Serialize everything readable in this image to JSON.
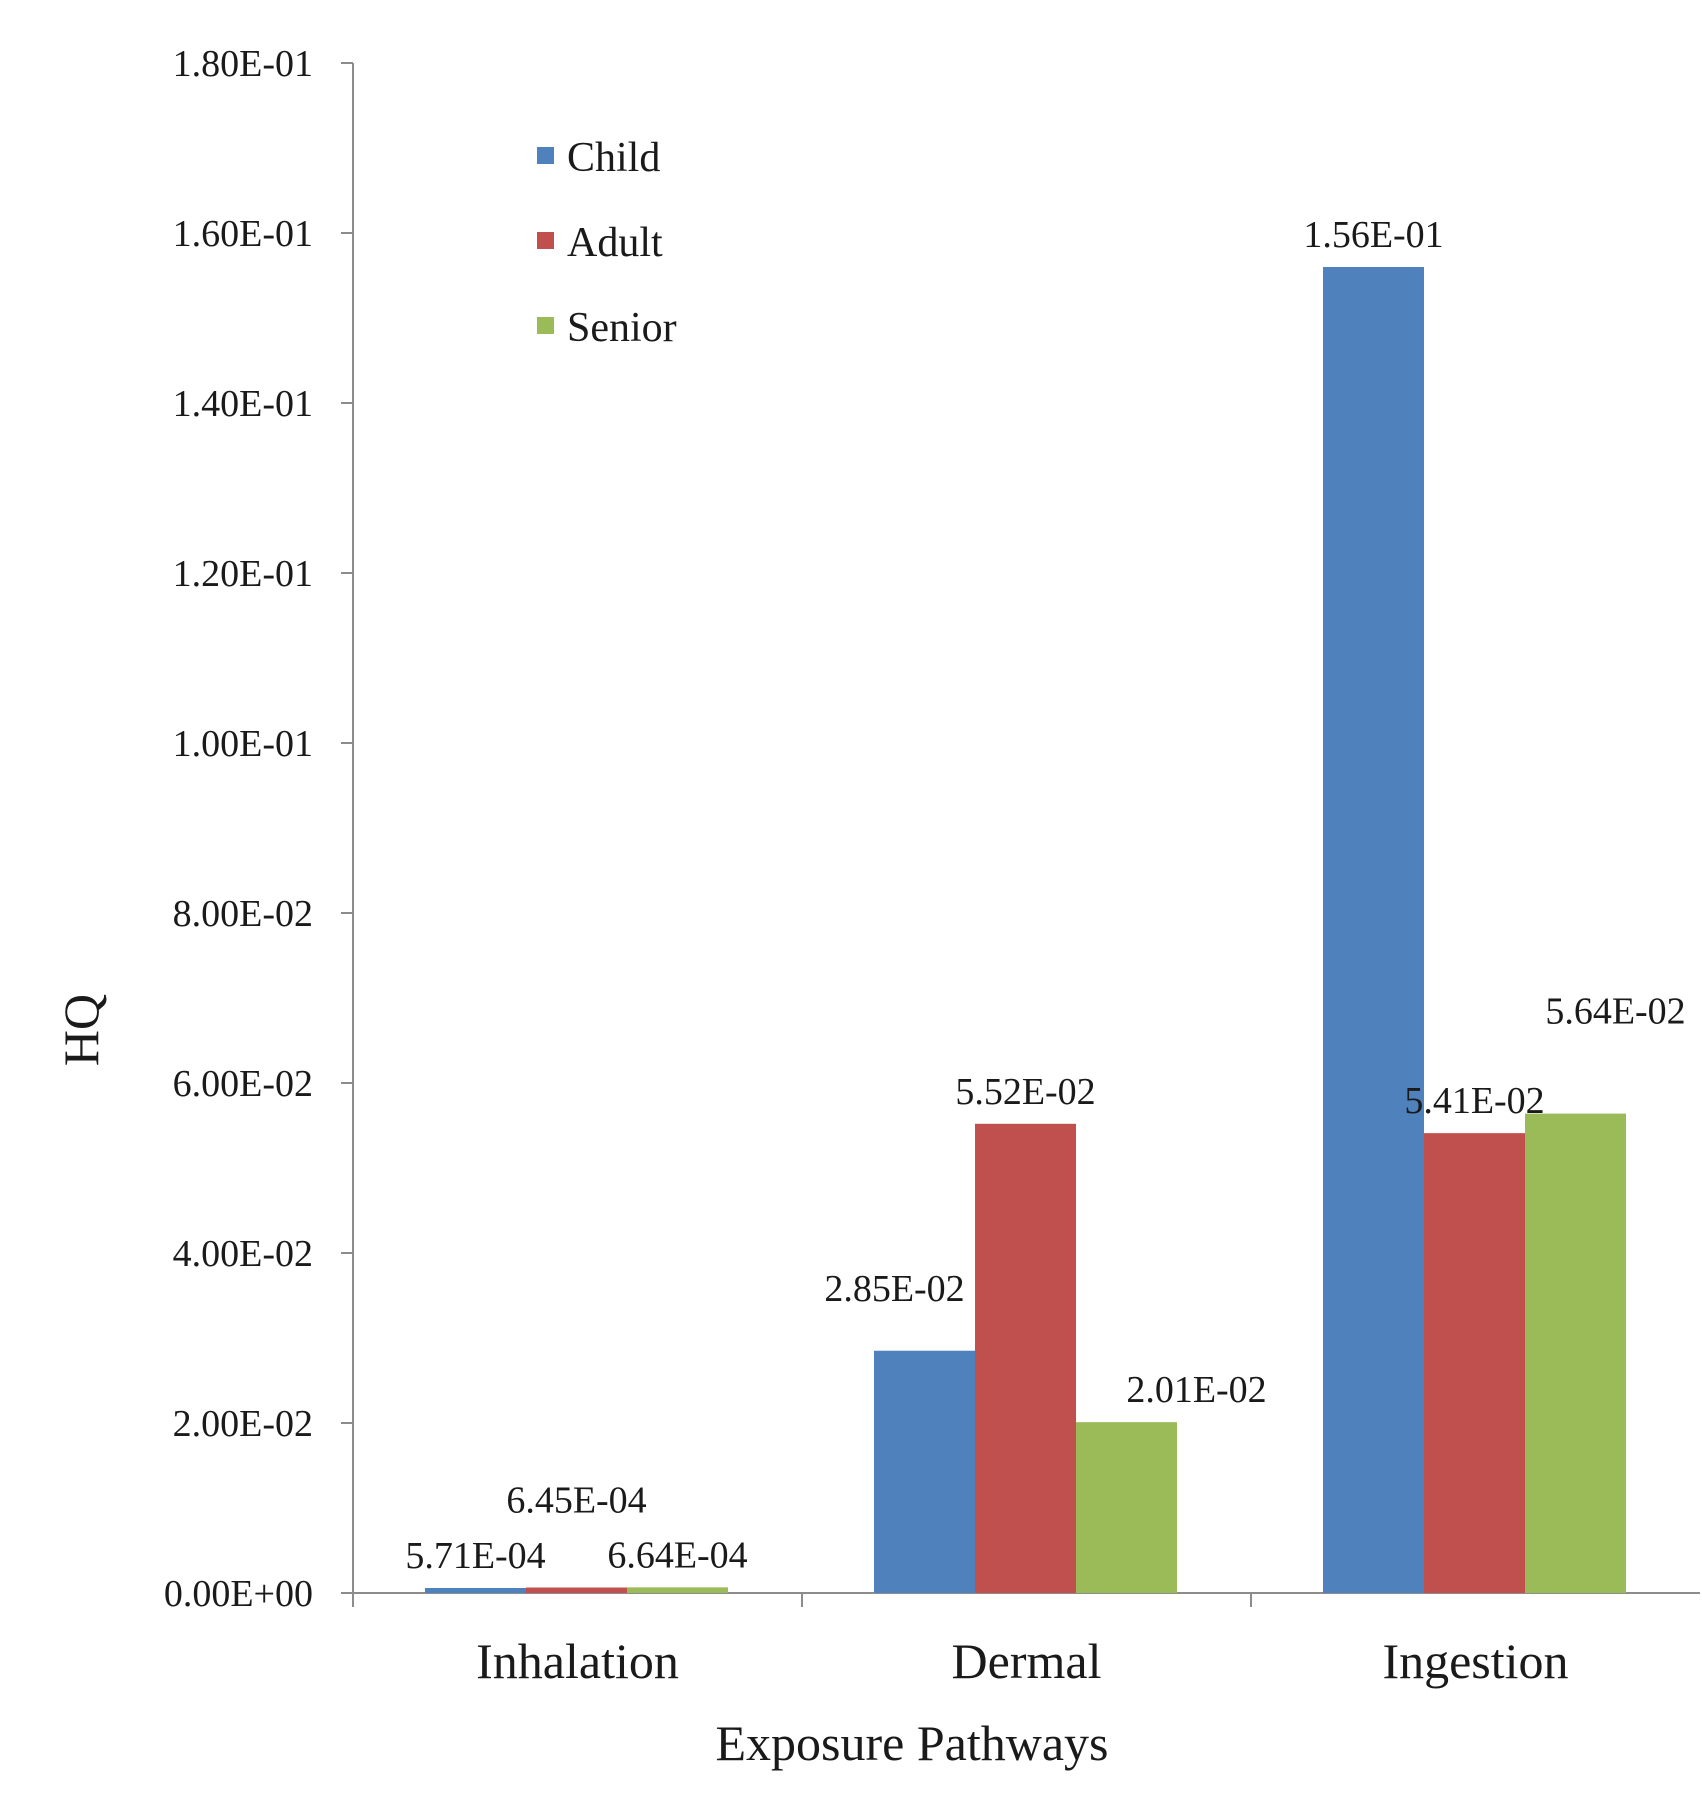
{
  "chart_data": {
    "type": "bar",
    "title": "",
    "xlabel": "Exposure Pathways",
    "ylabel": "HQ",
    "ylim": [
      0,
      0.18
    ],
    "ytick_values": [
      0,
      0.02,
      0.04,
      0.06,
      0.08,
      0.1,
      0.12,
      0.14,
      0.16,
      0.18
    ],
    "ytick_labels": [
      "0.00E+00",
      "2.00E-02",
      "4.00E-02",
      "6.00E-02",
      "8.00E-02",
      "1.00E-01",
      "1.20E-01",
      "1.40E-01",
      "1.60E-01",
      "1.80E-01"
    ],
    "grid": false,
    "legend_position": "top-left",
    "categories": [
      "Inhalation",
      "Dermal",
      "Ingestion"
    ],
    "series": [
      {
        "name": "Child",
        "color": "#4f81bd",
        "values": [
          0.000571,
          0.0285,
          0.156
        ],
        "labels": [
          "5.71E-04",
          "2.85E-02",
          "1.56E-01"
        ]
      },
      {
        "name": "Adult",
        "color": "#c0504d",
        "values": [
          0.000645,
          0.0552,
          0.0541
        ],
        "labels": [
          "6.45E-04",
          "5.52E-02",
          "5.41E-02"
        ]
      },
      {
        "name": "Senior",
        "color": "#9bbb59",
        "values": [
          0.000664,
          0.0201,
          0.0564
        ],
        "labels": [
          "6.64E-04",
          "2.01E-02",
          "5.64E-02"
        ]
      }
    ]
  }
}
